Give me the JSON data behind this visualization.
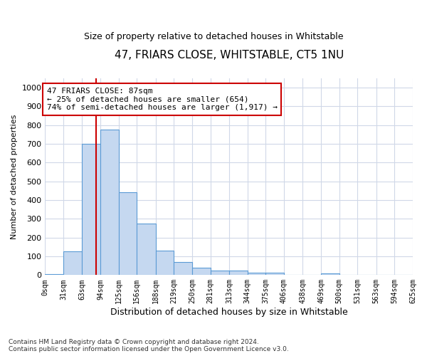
{
  "title": "47, FRIARS CLOSE, WHITSTABLE, CT5 1NU",
  "subtitle": "Size of property relative to detached houses in Whitstable",
  "xlabel": "Distribution of detached houses by size in Whitstable",
  "ylabel": "Number of detached properties",
  "footer_line1": "Contains HM Land Registry data © Crown copyright and database right 2024.",
  "footer_line2": "Contains public sector information licensed under the Open Government Licence v3.0.",
  "bin_edges": [
    0,
    31,
    63,
    94,
    125,
    156,
    188,
    219,
    250,
    281,
    313,
    344,
    375,
    406,
    438,
    469,
    500,
    531,
    563,
    594,
    625
  ],
  "bin_labels": [
    "0sqm",
    "31sqm",
    "63sqm",
    "94sqm",
    "125sqm",
    "156sqm",
    "188sqm",
    "219sqm",
    "250sqm",
    "281sqm",
    "313sqm",
    "344sqm",
    "375sqm",
    "406sqm",
    "438sqm",
    "469sqm",
    "500sqm",
    "531sqm",
    "563sqm",
    "594sqm",
    "625sqm"
  ],
  "bar_values": [
    5,
    125,
    700,
    775,
    440,
    275,
    130,
    70,
    40,
    25,
    25,
    12,
    12,
    0,
    0,
    8,
    0,
    0,
    0,
    0
  ],
  "bar_color": "#c5d8f0",
  "bar_edgecolor": "#5b9bd5",
  "vline_x": 87,
  "vline_color": "#cc0000",
  "ylim": [
    0,
    1050
  ],
  "annotation_text": "47 FRIARS CLOSE: 87sqm\n← 25% of detached houses are smaller (654)\n74% of semi-detached houses are larger (1,917) →",
  "annotation_box_color": "#cc0000",
  "background_color": "#ffffff",
  "grid_color": "#d0d8e8"
}
